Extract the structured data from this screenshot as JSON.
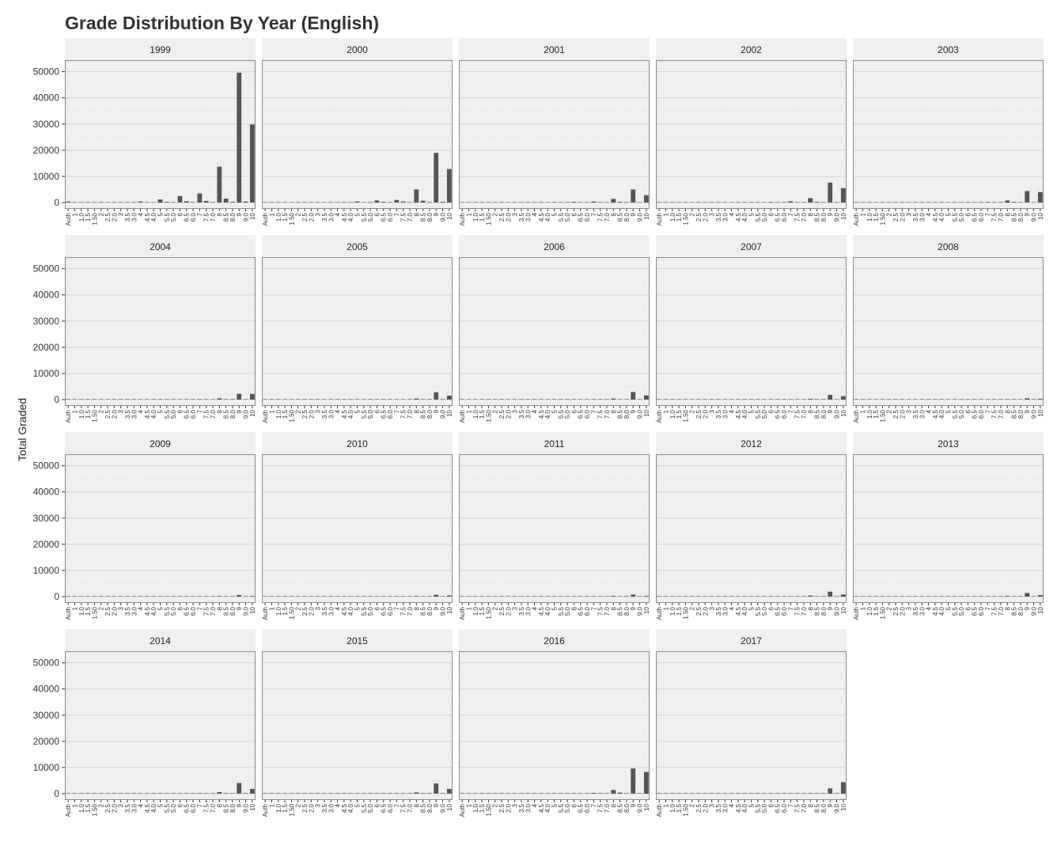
{
  "colors": {
    "panel_bg": "#efefef",
    "strip_bg": "#efefef",
    "grid_major": "#d2d2d2",
    "grid_minor": "#e4e4e4",
    "bar": "#545454",
    "panel_border": "#8a8a8a"
  },
  "chart_data": {
    "type": "bar",
    "title": "Grade Distribution By Year (English)",
    "xlabel": "",
    "ylabel": "Total Graded",
    "ylim": [
      0,
      52000
    ],
    "yticks": [
      0,
      10000,
      20000,
      30000,
      40000,
      50000
    ],
    "grid": true,
    "facet_columns": 5,
    "categories": [
      "Auth",
      "1",
      "1.0",
      "1.5",
      "1.50",
      "2",
      "2.5",
      "2.0",
      "3",
      "3.5",
      "3.0",
      "4",
      "4.5",
      "4.0",
      "5",
      "5.5",
      "5.0",
      "6",
      "6.5",
      "6.0",
      "7",
      "7.5",
      "7.0",
      "8",
      "8.5",
      "8.0",
      "9",
      "9.0",
      "10"
    ],
    "facets": [
      {
        "year": "1999",
        "values": [
          400,
          50,
          20,
          60,
          20,
          200,
          80,
          30,
          150,
          60,
          30,
          400,
          150,
          60,
          1200,
          300,
          100,
          2500,
          500,
          200,
          3500,
          600,
          200,
          13700,
          1500,
          300,
          49600,
          400,
          29800
        ]
      },
      {
        "year": "2000",
        "values": [
          20,
          10,
          5,
          20,
          5,
          40,
          20,
          10,
          60,
          30,
          10,
          120,
          80,
          30,
          400,
          150,
          50,
          800,
          300,
          100,
          1000,
          400,
          150,
          5000,
          700,
          200,
          19000,
          300,
          12800
        ]
      },
      {
        "year": "2001",
        "values": [
          10,
          5,
          5,
          10,
          5,
          20,
          10,
          5,
          30,
          10,
          5,
          60,
          30,
          10,
          200,
          80,
          20,
          300,
          120,
          40,
          400,
          150,
          60,
          1400,
          300,
          100,
          5000,
          150,
          2800
        ]
      },
      {
        "year": "2002",
        "values": [
          10,
          5,
          5,
          10,
          5,
          20,
          10,
          5,
          30,
          10,
          5,
          60,
          30,
          10,
          200,
          80,
          20,
          250,
          120,
          40,
          500,
          150,
          60,
          1700,
          300,
          100,
          7600,
          150,
          5500
        ]
      },
      {
        "year": "2003",
        "values": [
          10,
          5,
          5,
          10,
          5,
          20,
          10,
          5,
          30,
          10,
          5,
          60,
          30,
          10,
          150,
          60,
          20,
          200,
          100,
          40,
          250,
          120,
          50,
          800,
          250,
          80,
          4400,
          100,
          4000
        ]
      },
      {
        "year": "2004",
        "values": [
          5,
          5,
          5,
          5,
          5,
          10,
          5,
          5,
          20,
          10,
          5,
          30,
          20,
          10,
          100,
          40,
          10,
          150,
          60,
          20,
          200,
          80,
          30,
          500,
          150,
          60,
          2200,
          80,
          2200
        ]
      },
      {
        "year": "2005",
        "values": [
          5,
          5,
          5,
          5,
          5,
          10,
          5,
          5,
          10,
          5,
          5,
          20,
          10,
          5,
          50,
          20,
          10,
          100,
          40,
          10,
          100,
          50,
          20,
          400,
          100,
          40,
          2800,
          60,
          1500
        ]
      },
      {
        "year": "2006",
        "values": [
          5,
          5,
          5,
          5,
          5,
          10,
          5,
          5,
          10,
          5,
          5,
          20,
          10,
          5,
          60,
          30,
          10,
          100,
          40,
          10,
          150,
          60,
          20,
          400,
          120,
          40,
          2900,
          60,
          1600
        ]
      },
      {
        "year": "2007",
        "values": [
          5,
          5,
          5,
          5,
          5,
          10,
          5,
          5,
          10,
          5,
          5,
          20,
          10,
          5,
          40,
          20,
          10,
          80,
          30,
          10,
          100,
          50,
          20,
          300,
          100,
          40,
          1800,
          40,
          1300
        ]
      },
      {
        "year": "2008",
        "values": [
          5,
          5,
          5,
          5,
          5,
          5,
          5,
          5,
          10,
          5,
          5,
          10,
          10,
          5,
          20,
          10,
          5,
          40,
          20,
          10,
          60,
          30,
          10,
          150,
          60,
          20,
          500,
          20,
          300
        ]
      },
      {
        "year": "2009",
        "values": [
          5,
          5,
          5,
          5,
          5,
          5,
          5,
          5,
          5,
          5,
          5,
          10,
          5,
          5,
          20,
          10,
          5,
          30,
          20,
          10,
          60,
          30,
          10,
          250,
          80,
          20,
          600,
          20,
          250
        ]
      },
      {
        "year": "2010",
        "values": [
          5,
          5,
          5,
          5,
          5,
          5,
          5,
          5,
          5,
          5,
          5,
          10,
          5,
          5,
          20,
          10,
          5,
          30,
          20,
          10,
          80,
          30,
          10,
          250,
          80,
          20,
          700,
          20,
          450
        ]
      },
      {
        "year": "2011",
        "values": [
          5,
          5,
          5,
          5,
          5,
          5,
          5,
          5,
          5,
          5,
          5,
          10,
          5,
          5,
          20,
          10,
          5,
          30,
          20,
          10,
          60,
          30,
          10,
          300,
          80,
          20,
          800,
          20,
          300
        ]
      },
      {
        "year": "2012",
        "values": [
          5,
          5,
          5,
          5,
          5,
          5,
          5,
          5,
          5,
          5,
          5,
          10,
          5,
          5,
          20,
          10,
          5,
          30,
          20,
          10,
          100,
          40,
          20,
          400,
          150,
          40,
          1900,
          40,
          800
        ]
      },
      {
        "year": "2013",
        "values": [
          5,
          5,
          5,
          5,
          5,
          5,
          5,
          5,
          5,
          5,
          5,
          10,
          5,
          5,
          20,
          10,
          5,
          30,
          20,
          10,
          80,
          30,
          10,
          300,
          120,
          30,
          1400,
          30,
          600
        ]
      },
      {
        "year": "2014",
        "values": [
          5,
          5,
          5,
          5,
          5,
          5,
          5,
          5,
          5,
          5,
          5,
          10,
          5,
          5,
          30,
          10,
          5,
          150,
          40,
          10,
          200,
          60,
          20,
          600,
          200,
          60,
          4100,
          60,
          1800
        ]
      },
      {
        "year": "2015",
        "values": [
          5,
          5,
          5,
          5,
          5,
          5,
          5,
          5,
          5,
          5,
          5,
          10,
          5,
          5,
          30,
          10,
          5,
          100,
          40,
          10,
          200,
          60,
          20,
          500,
          200,
          60,
          3900,
          60,
          1800
        ]
      },
      {
        "year": "2016",
        "values": [
          5,
          5,
          5,
          5,
          5,
          5,
          5,
          5,
          10,
          5,
          5,
          30,
          10,
          5,
          150,
          50,
          20,
          200,
          80,
          30,
          300,
          100,
          40,
          1400,
          400,
          100,
          9600,
          120,
          8300
        ]
      },
      {
        "year": "2017",
        "values": [
          5,
          5,
          5,
          5,
          5,
          5,
          5,
          5,
          5,
          5,
          5,
          10,
          5,
          5,
          20,
          10,
          5,
          30,
          20,
          10,
          60,
          30,
          10,
          200,
          60,
          20,
          2000,
          60,
          4400
        ]
      }
    ]
  }
}
